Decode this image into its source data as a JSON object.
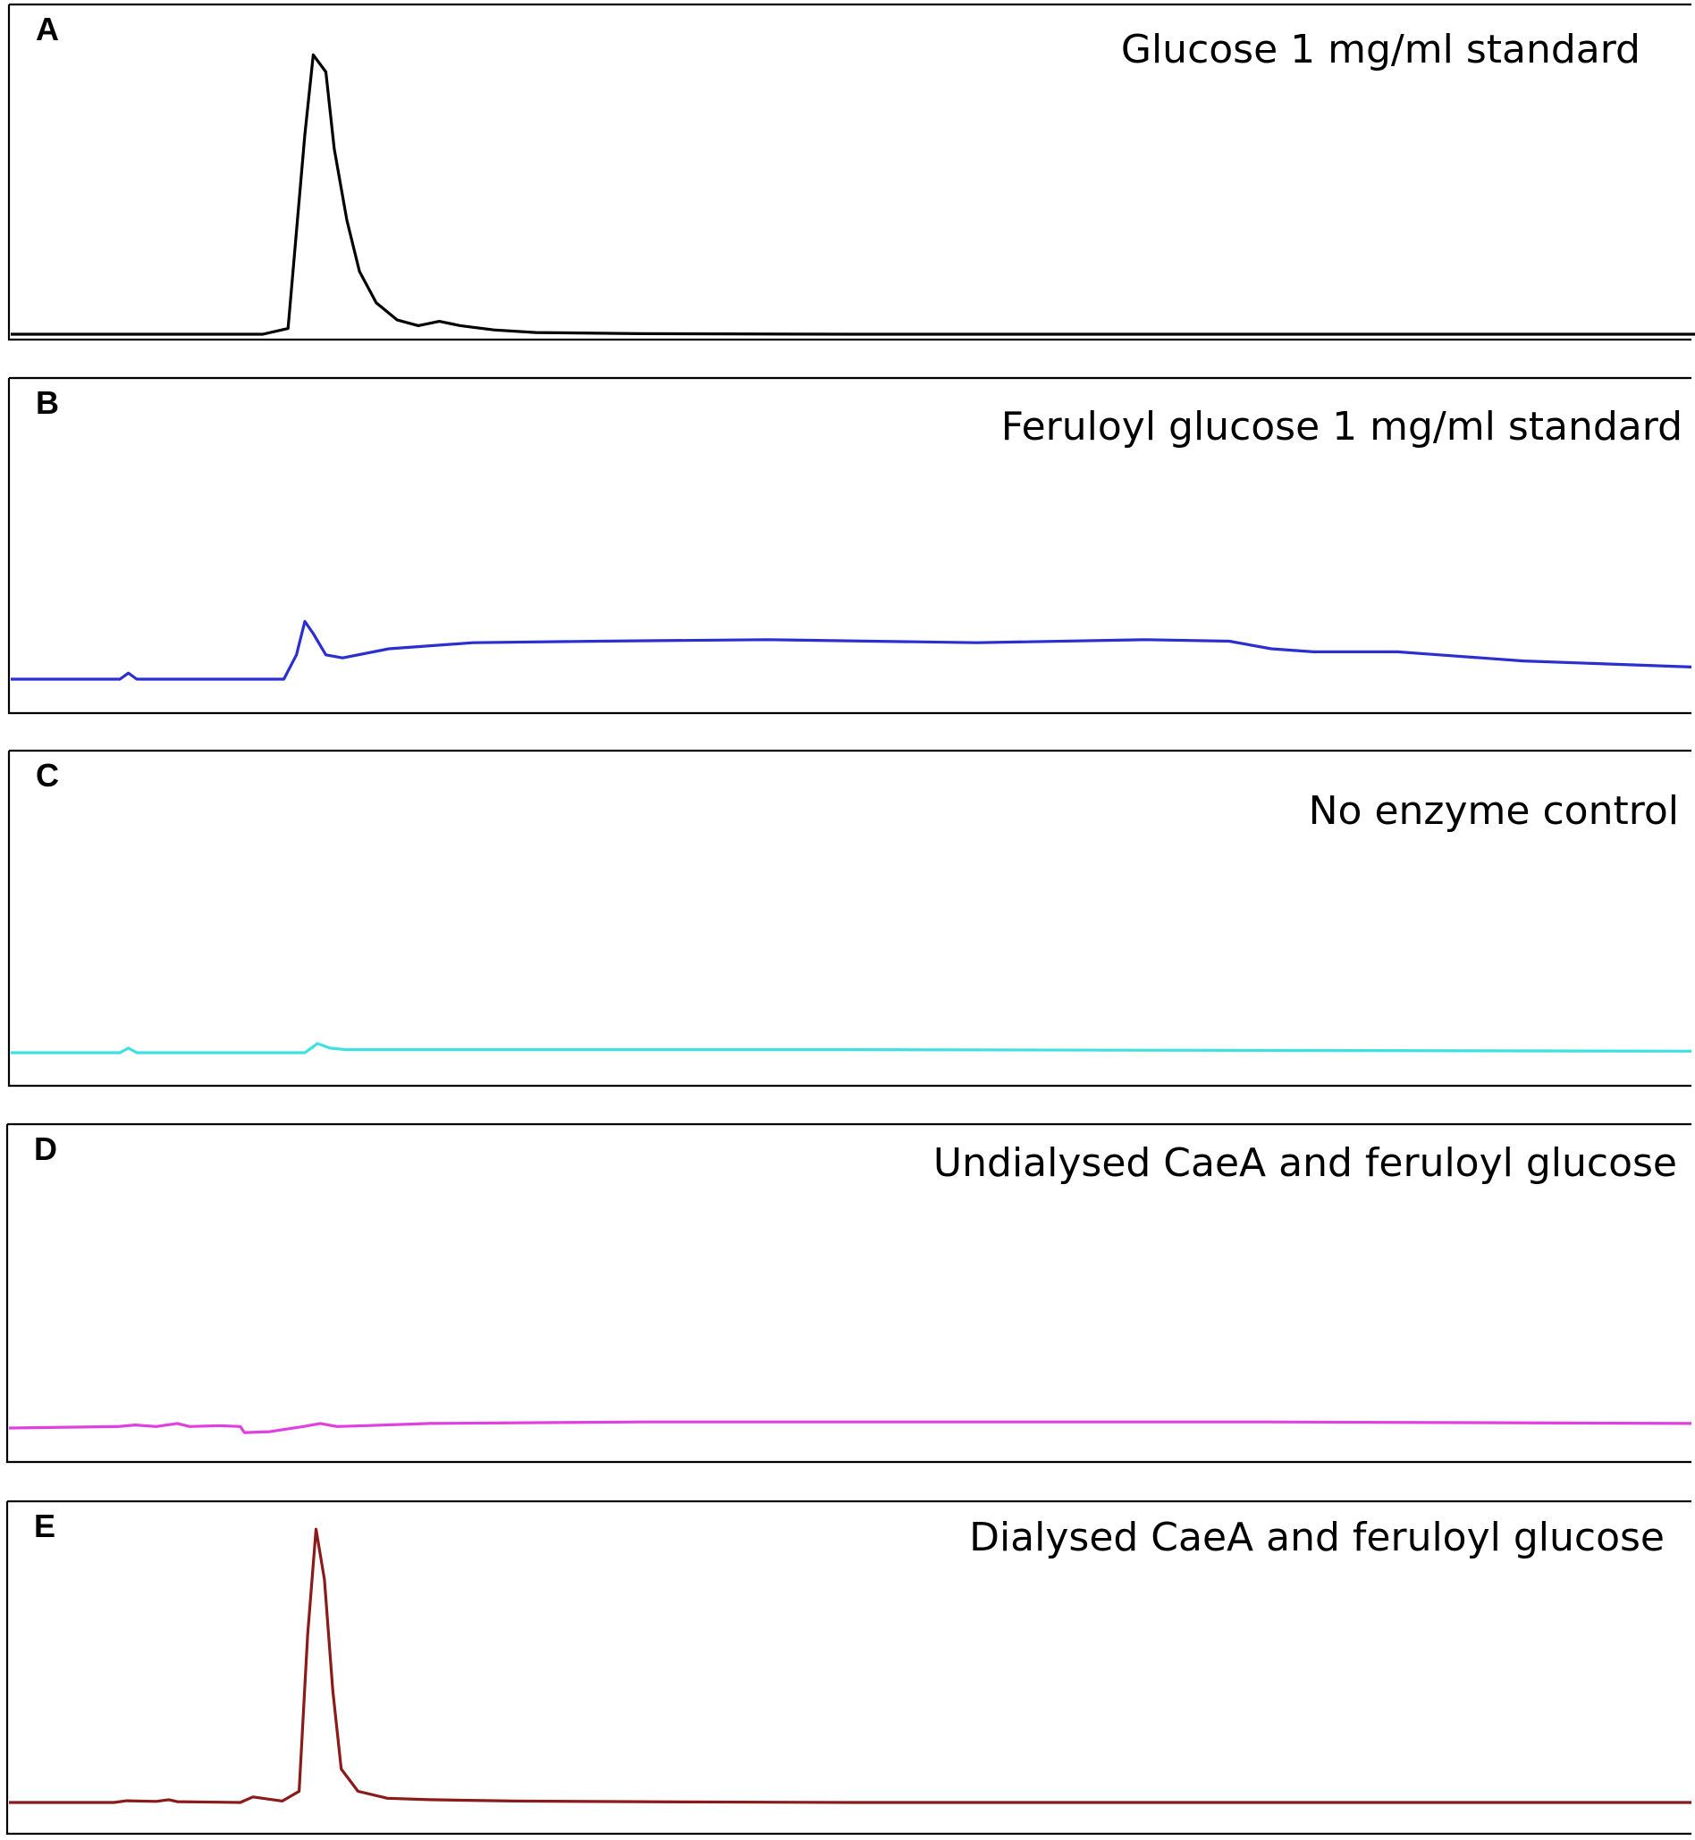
{
  "chart_data": [
    {
      "type": "line",
      "panel": "A",
      "title": "Glucose 1 mg/ml standard",
      "color": "#000000",
      "ylim": [
        0,
        100
      ],
      "x": [
        0,
        3,
        6,
        6.6,
        7,
        7.2,
        7.5,
        7.7,
        8.0,
        8.3,
        8.7,
        9.2,
        9.7,
        10.2,
        10.7,
        11.5,
        12.5,
        15,
        20,
        30,
        40,
        40.5
      ],
      "y": [
        0,
        0,
        0,
        2,
        70,
        98,
        92,
        65,
        40,
        22,
        11,
        5,
        3,
        4.5,
        3,
        1.5,
        0.6,
        0.2,
        0,
        0,
        0,
        0
      ]
    },
    {
      "type": "line",
      "panel": "B",
      "title": "Feruloyl glucose 1 mg/ml standard",
      "color": "#2b2fcf",
      "ylim": [
        0,
        100
      ],
      "x": [
        0,
        2.6,
        2.8,
        3.0,
        6.5,
        6.8,
        7.0,
        7.2,
        7.5,
        7.9,
        9,
        11,
        14,
        18,
        23,
        27,
        29,
        30,
        31,
        32,
        33,
        34,
        35,
        36,
        38,
        40
      ],
      "y": [
        0,
        0,
        2,
        0,
        0,
        8,
        19,
        15,
        8,
        7,
        10,
        12,
        12.5,
        13,
        12,
        13,
        12.5,
        10,
        9,
        9,
        9,
        8,
        7,
        6,
        5,
        4
      ]
    },
    {
      "type": "line",
      "panel": "C",
      "title": "No enzyme control",
      "color": "#40e0e0",
      "ylim": [
        0,
        100
      ],
      "x": [
        0,
        2.6,
        2.8,
        3.0,
        7.0,
        7.3,
        7.6,
        8.0,
        20,
        40
      ],
      "y": [
        0,
        0,
        1.5,
        0,
        0,
        3,
        1.5,
        1,
        1,
        0.5
      ]
    },
    {
      "type": "line",
      "panel": "D",
      "title": "Undialysed CaeA and feruloyl glucose",
      "color": "#e040e0",
      "ylim": [
        0,
        100
      ],
      "x": [
        0,
        2.6,
        3.0,
        3.5,
        4.0,
        4.3,
        5.0,
        5.5,
        5.6,
        6.2,
        7.0,
        7.4,
        7.8,
        8.5,
        10,
        15,
        20,
        25,
        30,
        40
      ],
      "y": [
        0,
        0.5,
        1,
        0.5,
        1.5,
        0.5,
        0.8,
        0.5,
        -1.5,
        -1.2,
        0.5,
        1.5,
        0.5,
        0.8,
        1.5,
        2,
        2,
        2,
        2,
        1.5
      ]
    },
    {
      "type": "line",
      "panel": "E",
      "title": "Dialysed CaeA and feruloyl glucose",
      "color": "#8b1a1a",
      "ylim": [
        0,
        100
      ],
      "x": [
        0,
        2.5,
        2.8,
        3.5,
        3.8,
        4.0,
        5.5,
        5.8,
        6.5,
        6.9,
        7.1,
        7.3,
        7.5,
        7.7,
        7.9,
        8.3,
        9,
        10,
        12,
        16,
        20,
        40
      ],
      "y": [
        0,
        0,
        0.6,
        0.4,
        1,
        0.3,
        0,
        2,
        0.5,
        4,
        60,
        98,
        80,
        40,
        12,
        4,
        1.5,
        1,
        0.5,
        0.2,
        0,
        0
      ]
    }
  ]
}
